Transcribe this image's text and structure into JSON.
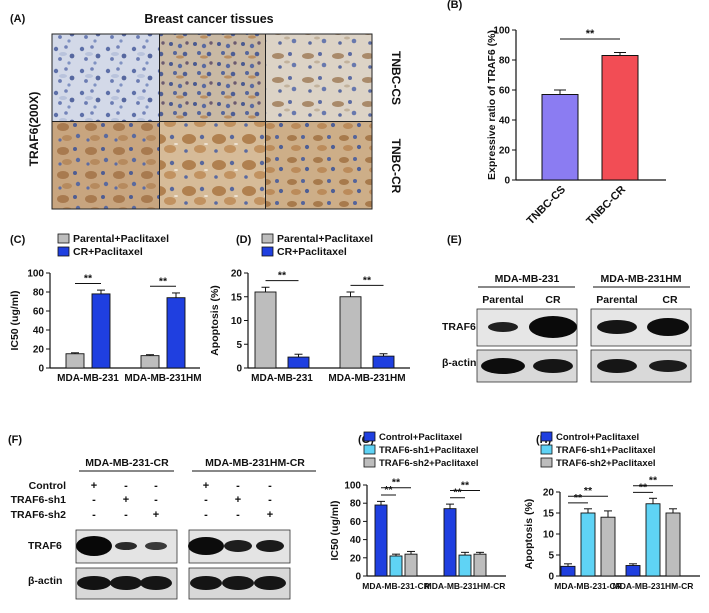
{
  "panels": {
    "A": {
      "letter": "(A)",
      "title": "Breast cancer tissues",
      "row_header": "TRAF6(200X)",
      "rows": [
        "TNBC-CS",
        "TNBC-CR"
      ]
    },
    "E": {
      "letter": "(E)",
      "groups": [
        "MDA-MB-231",
        "MDA-MB-231HM"
      ],
      "lanes": [
        "Parental",
        "CR",
        "Parental",
        "CR"
      ],
      "bands": [
        "TRAF6",
        "β-actin"
      ]
    },
    "F": {
      "letter": "(F)",
      "groups": [
        "MDA-MB-231-CR",
        "MDA-MB-231HM-CR"
      ],
      "row_labels": [
        "Control",
        "TRAF6-sh1",
        "TRAF6-sh2"
      ],
      "matrix": [
        [
          "+",
          "-",
          "-",
          "+",
          "-",
          "-"
        ],
        [
          "-",
          "+",
          "-",
          "-",
          "+",
          "-"
        ],
        [
          "-",
          "-",
          "+",
          "-",
          "-",
          "+"
        ]
      ],
      "bands": [
        "TRAF6",
        "β-actin"
      ]
    }
  },
  "colors": {
    "gray": "#bdbdbd",
    "blue": "#1f3fe0",
    "cyan": "#5fd3f5",
    "purple": "#8b7cf2",
    "red": "#f24d55",
    "tissue_purple": "#9aa6c8",
    "tissue_brown": "#c49a6c"
  },
  "chart_data": [
    {
      "panel": "B",
      "letter": "(B)",
      "type": "bar",
      "categories": [
        "TNBC-CS",
        "TNBC-CR"
      ],
      "values": [
        57,
        83
      ],
      "errors": [
        3,
        2
      ],
      "ylabel": "Expressive ratio of TRAF6 (%)",
      "ylim": [
        0,
        100
      ],
      "yticks": [
        "0",
        "20",
        "40",
        "60",
        "80",
        "100"
      ],
      "significance": [
        {
          "from": 0,
          "to": 1,
          "label": "**"
        }
      ]
    },
    {
      "panel": "C",
      "letter": "(C)",
      "type": "bar",
      "categories": [
        "MDA-MB-231",
        "MDA-MB-231HM"
      ],
      "series": [
        {
          "name": "Parental+Paclitaxel",
          "values": [
            15,
            13
          ],
          "errors": [
            1,
            1
          ]
        },
        {
          "name": "CR+Paclitaxel",
          "values": [
            78,
            74
          ],
          "errors": [
            4,
            5
          ]
        }
      ],
      "ylabel": "IC50 (ug/ml)",
      "ylim": [
        0,
        100
      ],
      "yticks": [
        "0",
        "20",
        "40",
        "60",
        "80",
        "100"
      ],
      "legend": "top-left",
      "significance": [
        {
          "category": 0,
          "label": "**"
        },
        {
          "category": 1,
          "label": "**"
        }
      ]
    },
    {
      "panel": "D",
      "letter": "(D)",
      "type": "bar",
      "categories": [
        "MDA-MB-231",
        "MDA-MB-231HM"
      ],
      "series": [
        {
          "name": "Parental+Paclitaxel",
          "values": [
            16,
            15
          ],
          "errors": [
            1,
            1
          ]
        },
        {
          "name": "CR+Paclitaxel",
          "values": [
            2.3,
            2.5
          ],
          "errors": [
            0.6,
            0.5
          ]
        }
      ],
      "ylabel": "Apoptosis (%)",
      "ylim": [
        0,
        20
      ],
      "yticks": [
        "0",
        "5",
        "10",
        "15",
        "20"
      ],
      "legend": "top-left",
      "significance": [
        {
          "category": 0,
          "label": "**"
        },
        {
          "category": 1,
          "label": "**"
        }
      ]
    },
    {
      "panel": "G",
      "letter": "(G)",
      "type": "bar",
      "categories": [
        "MDA-MB-231-CR",
        "MDA-MB-231HM-CR"
      ],
      "series": [
        {
          "name": "Control+Paclitaxel",
          "values": [
            78,
            74
          ],
          "errors": [
            4,
            5
          ]
        },
        {
          "name": "TRAF6-sh1+Paclitaxel",
          "values": [
            22,
            23
          ],
          "errors": [
            2,
            3
          ]
        },
        {
          "name": "TRAF6-sh2+Paclitaxel",
          "values": [
            24,
            24
          ],
          "errors": [
            3,
            2
          ]
        }
      ],
      "ylabel": "IC50 (ug/ml)",
      "ylim": [
        0,
        100
      ],
      "yticks": [
        "0",
        "20",
        "40",
        "60",
        "80",
        "100"
      ],
      "legend": "top-left",
      "significance": [
        {
          "category": 0,
          "from": 0,
          "to": 1,
          "label": "**"
        },
        {
          "category": 0,
          "from": 0,
          "to": 2,
          "label": "**"
        },
        {
          "category": 1,
          "from": 0,
          "to": 1,
          "label": "**"
        },
        {
          "category": 1,
          "from": 0,
          "to": 2,
          "label": "**"
        }
      ]
    },
    {
      "panel": "H",
      "letter": "(H)",
      "type": "bar",
      "categories": [
        "MDA-MB-231-CR",
        "MDA-MB-231HM-CR"
      ],
      "series": [
        {
          "name": "Control+Paclitaxel",
          "values": [
            2.3,
            2.5
          ],
          "errors": [
            0.6,
            0.4
          ]
        },
        {
          "name": "TRAF6-sh1+Paclitaxel",
          "values": [
            15,
            17.2
          ],
          "errors": [
            1,
            1.3
          ]
        },
        {
          "name": "TRAF6-sh2+Paclitaxel",
          "values": [
            14,
            15
          ],
          "errors": [
            1.5,
            1
          ]
        }
      ],
      "ylabel": "Apoptosis (%)",
      "ylim": [
        0,
        20
      ],
      "yticks": [
        "0",
        "5",
        "10",
        "15",
        "20"
      ],
      "legend": "top-left",
      "significance": [
        {
          "category": 0,
          "from": 0,
          "to": 1,
          "label": "**"
        },
        {
          "category": 0,
          "from": 0,
          "to": 2,
          "label": "**"
        },
        {
          "category": 1,
          "from": 0,
          "to": 1,
          "label": "**"
        },
        {
          "category": 1,
          "from": 0,
          "to": 2,
          "label": "**"
        }
      ]
    }
  ]
}
